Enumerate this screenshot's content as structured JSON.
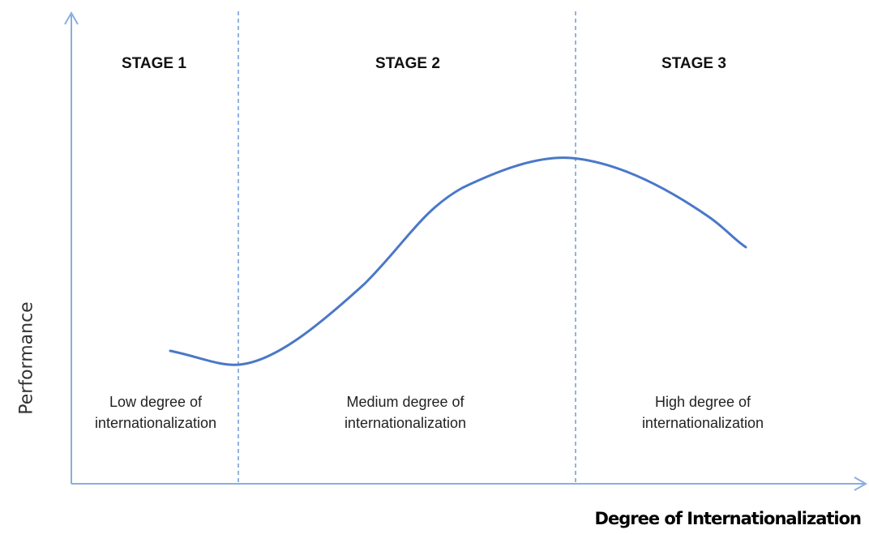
{
  "colors": {
    "axis": "#8aaee0",
    "divider": "#6f9ad6",
    "curve": "#4a78c8"
  },
  "axes": {
    "ylabel": "Performance",
    "xlabel": "Degree of Internationalization"
  },
  "stages": [
    {
      "title": "STAGE 1",
      "desc_line1": "Low degree of",
      "desc_line2": "internationalization"
    },
    {
      "title": "STAGE 2",
      "desc_line1": "Medium degree of",
      "desc_line2": "internationalization"
    },
    {
      "title": "STAGE 3",
      "desc_line1": "High degree of",
      "desc_line2": "internationalization"
    }
  ]
}
